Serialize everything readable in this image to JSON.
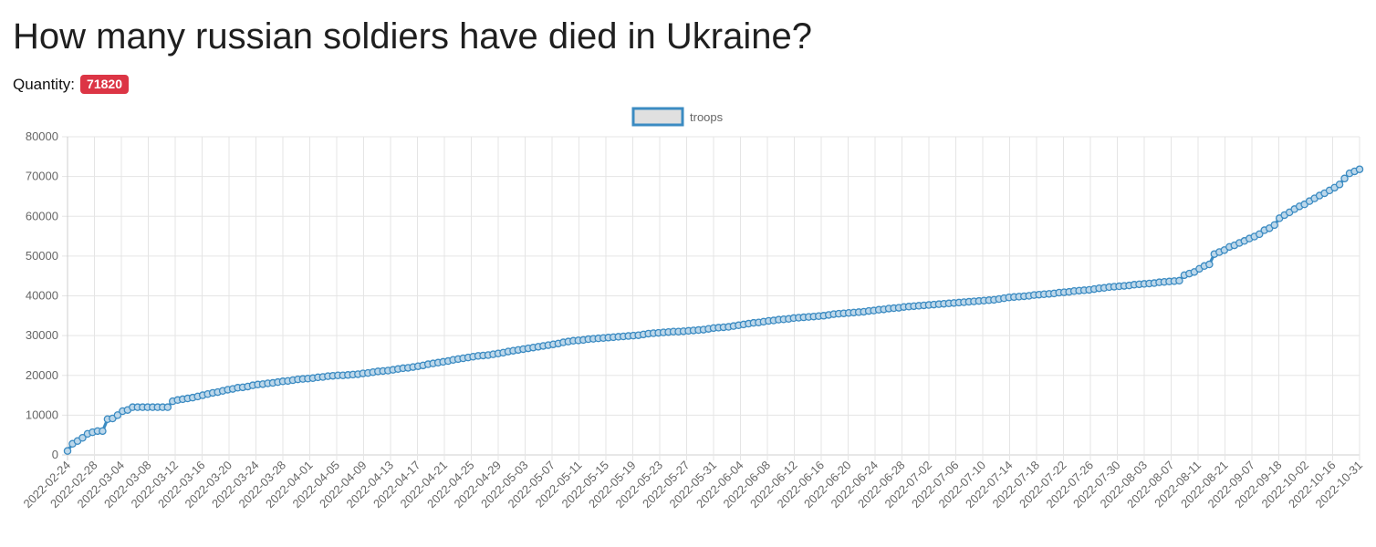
{
  "header": {
    "title": "How many russian soldiers have died in Ukraine?",
    "quantity_label": "Quantity:",
    "quantity_value": "71820"
  },
  "colors": {
    "line": "#3b8bc2",
    "point_fill": "#bcd7ea",
    "badge": "#dc3545",
    "grid": "#e5e5e5"
  },
  "chart_data": {
    "type": "line",
    "title": "",
    "xlabel": "",
    "ylabel": "",
    "legend": {
      "position": "top-center",
      "label": "troops"
    },
    "grid": true,
    "ylim": [
      0,
      80000
    ],
    "y_ticks": [
      0,
      10000,
      20000,
      30000,
      40000,
      50000,
      60000,
      70000,
      80000
    ],
    "x_tick_labels": [
      "2022-02-24",
      "2022-02-28",
      "2022-03-04",
      "2022-03-08",
      "2022-03-12",
      "2022-03-16",
      "2022-03-20",
      "2022-03-24",
      "2022-03-28",
      "2022-04-01",
      "2022-04-05",
      "2022-04-09",
      "2022-04-13",
      "2022-04-17",
      "2022-04-21",
      "2022-04-25",
      "2022-04-29",
      "2022-05-03",
      "2022-05-07",
      "2022-05-11",
      "2022-05-15",
      "2022-05-19",
      "2022-05-23",
      "2022-05-27",
      "2022-05-31",
      "2022-06-04",
      "2022-06-08",
      "2022-06-12",
      "2022-06-16",
      "2022-06-20",
      "2022-06-24",
      "2022-06-28",
      "2022-07-02",
      "2022-07-06",
      "2022-07-10",
      "2022-07-14",
      "2022-07-18",
      "2022-07-22",
      "2022-07-26",
      "2022-07-30",
      "2022-08-03",
      "2022-08-07",
      "2022-08-11",
      "2022-08-21",
      "2022-09-07",
      "2022-09-18",
      "2022-10-02",
      "2022-10-16",
      "2022-10-31"
    ],
    "series": [
      {
        "name": "troops",
        "values": [
          1000,
          2800,
          3500,
          4300,
          5300,
          5700,
          6000,
          6000,
          9000,
          9166,
          10000,
          11000,
          11300,
          12000,
          12000,
          12000,
          12000,
          12000,
          12000,
          12000,
          12000,
          13500,
          13800,
          14000,
          14200,
          14400,
          14700,
          15000,
          15300,
          15600,
          15800,
          16100,
          16400,
          16600,
          16900,
          17000,
          17200,
          17500,
          17700,
          17800,
          18000,
          18100,
          18300,
          18500,
          18600,
          18800,
          19000,
          19100,
          19200,
          19300,
          19500,
          19600,
          19800,
          19900,
          20000,
          20000,
          20100,
          20200,
          20300,
          20500,
          20600,
          20800,
          21000,
          21100,
          21200,
          21400,
          21600,
          21800,
          21900,
          22100,
          22300,
          22500,
          22800,
          23000,
          23200,
          23400,
          23600,
          23900,
          24100,
          24300,
          24500,
          24700,
          24900,
          25000,
          25100,
          25300,
          25500,
          25700,
          26000,
          26200,
          26400,
          26600,
          26800,
          27000,
          27200,
          27400,
          27600,
          27800,
          28000,
          28300,
          28500,
          28700,
          28800,
          28900,
          29100,
          29200,
          29300,
          29400,
          29500,
          29600,
          29700,
          29800,
          29900,
          30000,
          30100,
          30300,
          30500,
          30600,
          30700,
          30800,
          30900,
          31000,
          31000,
          31100,
          31200,
          31300,
          31400,
          31500,
          31700,
          31900,
          32000,
          32100,
          32200,
          32400,
          32600,
          32800,
          33000,
          33200,
          33300,
          33500,
          33700,
          33800,
          34000,
          34100,
          34200,
          34400,
          34500,
          34600,
          34700,
          34800,
          34900,
          35000,
          35200,
          35400,
          35500,
          35600,
          35700,
          35800,
          35900,
          36000,
          36200,
          36300,
          36500,
          36600,
          36800,
          36900,
          37000,
          37200,
          37300,
          37400,
          37500,
          37600,
          37700,
          37800,
          37900,
          38000,
          38100,
          38200,
          38300,
          38400,
          38500,
          38600,
          38700,
          38800,
          38900,
          39000,
          39200,
          39400,
          39600,
          39700,
          39800,
          39900,
          40000,
          40200,
          40300,
          40400,
          40500,
          40600,
          40800,
          40900,
          41000,
          41200,
          41300,
          41400,
          41500,
          41700,
          41900,
          42000,
          42200,
          42300,
          42400,
          42500,
          42600,
          42800,
          42900,
          43000,
          43100,
          43200,
          43400,
          43500,
          43600,
          43700,
          43800,
          45200,
          45600,
          46000,
          46800,
          47500,
          47900,
          50500,
          51000,
          51500,
          52300,
          52700,
          53300,
          53800,
          54400,
          54900,
          55500,
          56500,
          57000,
          57800,
          59500,
          60300,
          61000,
          61800,
          62500,
          63000,
          63800,
          64500,
          65200,
          65800,
          66500,
          67200,
          68000,
          69500,
          70800,
          71300,
          71820
        ]
      }
    ]
  }
}
